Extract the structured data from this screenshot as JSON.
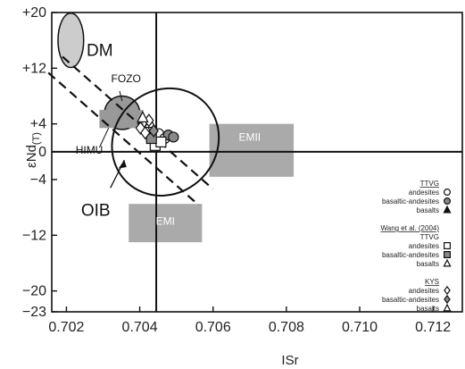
{
  "chart_data": {
    "type": "scatter",
    "xlabel": "ISr",
    "ylabel": "εNd",
    "ylabel_sub": "(T)",
    "xlim": [
      0.7016,
      0.7128
    ],
    "ylim": [
      -23,
      20
    ],
    "xticks": [
      "0.702",
      "0.704",
      "0.706",
      "0.708",
      "0.710",
      "0.712"
    ],
    "yticks": [
      {
        "label": "+20",
        "value": 20
      },
      {
        "label": "+12",
        "value": 12
      },
      {
        "label": "+4",
        "value": 4
      },
      {
        "label": "0",
        "value": 0
      },
      {
        "label": "−4",
        "value": -4
      },
      {
        "label": "−12",
        "value": -12
      },
      {
        "label": "−20",
        "value": -20
      },
      {
        "label": "−23",
        "value": -23
      }
    ],
    "bulk_earth": {
      "x": 0.70445,
      "y": 0
    },
    "mantle_array": {
      "x1": 0.7017,
      "y1": 12.5,
      "x2": 0.7058,
      "y2": -6.5
    },
    "regions": [
      {
        "name": "DM",
        "shape": "ellipse",
        "cx": 0.70212,
        "cy": 16,
        "rx": 0.00035,
        "ry": 3.9,
        "fill": "#cccccc"
      },
      {
        "name": "FOZO",
        "shape": "ellipse",
        "cx": 0.70352,
        "cy": 5.6,
        "rx": 0.00048,
        "ry": 2.4,
        "fill": "#999999"
      },
      {
        "name": "HIMU",
        "shape": "rect",
        "x1": 0.7029,
        "x2": 0.7041,
        "y1": 3.4,
        "y2": 6.0,
        "fill": "#999999"
      },
      {
        "name": "EMII",
        "shape": "rect",
        "x1": 0.7059,
        "x2": 0.7082,
        "y1": -3.6,
        "y2": 4.0,
        "fill": "#aaaaaa"
      },
      {
        "name": "EMI",
        "shape": "rect",
        "x1": 0.7037,
        "x2": 0.7057,
        "y1": -13.0,
        "y2": -7.5,
        "fill": "#aaaaaa"
      }
    ],
    "oib_field": {
      "name": "OIB",
      "cx": 0.7047,
      "cy": 1.4,
      "rx": 0.0014,
      "ry": 8.0,
      "angle_deg": 44
    },
    "series": [
      {
        "name": "andesites",
        "group": "TTVG",
        "marker": "circle-open",
        "points": [
          [
            0.70452,
            2.6
          ],
          [
            0.70468,
            1.9
          ]
        ]
      },
      {
        "name": "basaltic-andesites",
        "group": "TTVG",
        "marker": "circle-gray",
        "points": [
          [
            0.70478,
            2.4
          ],
          [
            0.70492,
            2.1
          ]
        ]
      },
      {
        "name": "basalts",
        "group": "TTVG",
        "marker": "triangle-filled",
        "points": []
      },
      {
        "name": "andesites",
        "group": "Wang et al. (2004) TTVG",
        "marker": "square-open",
        "points": [
          [
            0.70442,
            0.9
          ],
          [
            0.70458,
            1.4
          ]
        ]
      },
      {
        "name": "basaltic-andesites",
        "group": "Wang et al. (2004) TTVG",
        "marker": "square-gray",
        "points": [
          [
            0.70432,
            1.9
          ]
        ]
      },
      {
        "name": "basalts",
        "group": "Wang et al. (2004) TTVG",
        "marker": "triangle-open",
        "points": [
          [
            0.70418,
            3.2
          ],
          [
            0.70428,
            4.1
          ]
        ]
      },
      {
        "name": "andesites",
        "group": "KYS",
        "marker": "diamond-open",
        "points": [
          [
            0.70402,
            3.4
          ],
          [
            0.70415,
            2.7
          ],
          [
            0.70425,
            4.5
          ]
        ]
      },
      {
        "name": "basaltic-andesites",
        "group": "KYS",
        "marker": "diamond-gray",
        "points": [
          [
            0.70438,
            3.0
          ]
        ]
      },
      {
        "name": "basalts",
        "group": "KYS",
        "marker": "triangle-open",
        "points": [
          [
            0.70408,
            4.9
          ]
        ]
      }
    ],
    "legend": {
      "position": "right",
      "groups": [
        {
          "title": "TTVG",
          "items": [
            {
              "label": "andesites",
              "marker": "circle-open"
            },
            {
              "label": "basaltic-andesites",
              "marker": "circle-gray"
            },
            {
              "label": "basalts",
              "marker": "triangle-filled"
            }
          ]
        },
        {
          "title": "Wang et al. (2004)",
          "subtitle": "TTVG",
          "items": [
            {
              "label": "andesites",
              "marker": "square-open"
            },
            {
              "label": "basaltic-andesites",
              "marker": "square-gray"
            },
            {
              "label": "basalts",
              "marker": "triangle-open"
            }
          ]
        },
        {
          "title": "KYS",
          "items": [
            {
              "label": "andesites",
              "marker": "diamond-open"
            },
            {
              "label": "basaltic-andesites",
              "marker": "diamond-gray"
            },
            {
              "label": "basalts",
              "marker": "triangle-open"
            }
          ]
        }
      ]
    },
    "grid": false
  }
}
